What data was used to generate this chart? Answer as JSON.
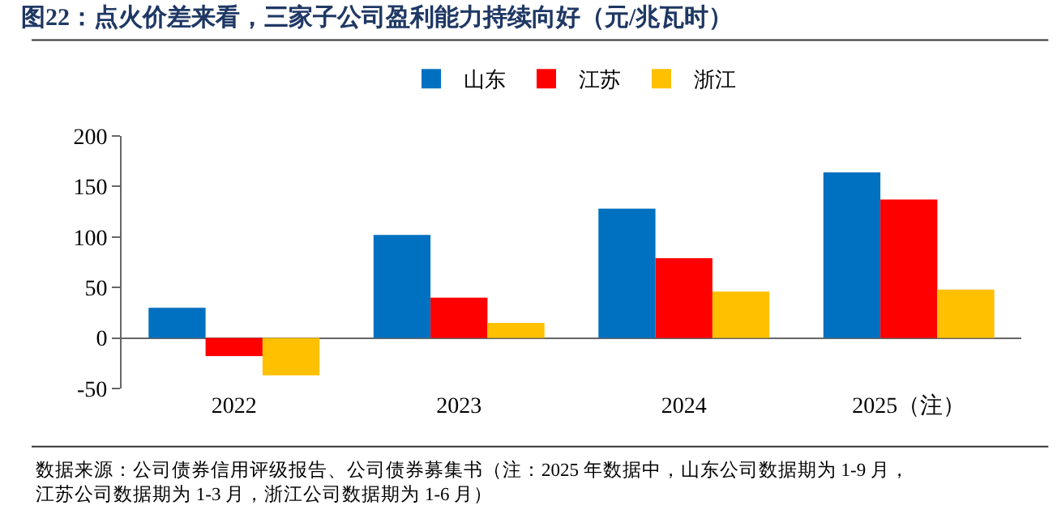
{
  "chart_data": {
    "type": "bar",
    "title": "图22：点火价差来看，三家子公司盈利能力持续向好（元/兆瓦时）",
    "categories": [
      "2022",
      "2023",
      "2024",
      "2025（注）"
    ],
    "series": [
      {
        "name": "山东",
        "color": "#0070c0",
        "values": [
          30,
          102,
          128,
          164
        ]
      },
      {
        "name": "江苏",
        "color": "#ff0000",
        "values": [
          -18,
          40,
          79,
          137
        ]
      },
      {
        "name": "浙江",
        "color": "#ffc000",
        "values": [
          -37,
          15,
          46,
          48
        ]
      }
    ],
    "ylim": [
      -50,
      200
    ],
    "yticks": [
      -50,
      0,
      50,
      100,
      150,
      200
    ],
    "legend": "top",
    "annotations": [
      "数据来源：公司债券信用评级报告、公司债券募集书（注：2025 年数据中，山东公司数据期为 1-9 月，江苏公司数据期为 1-3 月，浙江公司数据期为 1-6 月）"
    ]
  }
}
